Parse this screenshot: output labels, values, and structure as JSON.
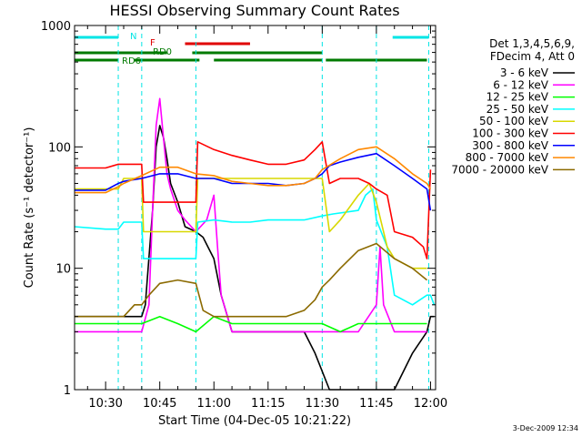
{
  "chart_data": {
    "type": "line",
    "title": "HESSI Observing Summary Count Rates",
    "xlabel": "Start Time (04-Dec-05 10:21:22)",
    "ylabel": "Count Rate (s⁻¹ detector⁻¹)",
    "y_scale": "log",
    "ylim": [
      1,
      1000
    ],
    "xlim_minutes_after_10_00": [
      21.4,
      121.4
    ],
    "x_ticks": [
      {
        "label": "10:30",
        "x": 30
      },
      {
        "label": "10:45",
        "x": 45
      },
      {
        "label": "11:00",
        "x": 60
      },
      {
        "label": "11:15",
        "x": 75
      },
      {
        "label": "11:30",
        "x": 90
      },
      {
        "label": "11:45",
        "x": 105
      },
      {
        "label": "12:00",
        "x": 120
      }
    ],
    "y_ticks": [
      {
        "label": "1",
        "y": 1
      },
      {
        "label": "10",
        "y": 10
      },
      {
        "label": "100",
        "y": 100
      },
      {
        "label": "1000",
        "y": 1000
      }
    ],
    "legend_header": [
      "Det 1,3,4,5,6,9,",
      "FDecim 4, Att 0"
    ],
    "legend_position": "right",
    "date_stamp": "3-Dec-2009 12:34",
    "flags": [
      {
        "name": "N",
        "color": "#00e5e5",
        "segments": [
          [
            21.4,
            33.5
          ],
          [
            109.5,
            119.5
          ]
        ]
      },
      {
        "name": "F",
        "color": "#e00000",
        "segments": [
          [
            52,
            70
          ]
        ]
      },
      {
        "name": "RD0",
        "color": "#007a00",
        "segments": [
          [
            21.4,
            47
          ],
          [
            54,
            90
          ]
        ]
      },
      {
        "name": "RD6",
        "color": "#007a00",
        "segments": [
          [
            21.4,
            33.5
          ],
          [
            38,
            56
          ],
          [
            60,
            90
          ],
          [
            91,
            119
          ]
        ]
      }
    ],
    "series": [
      {
        "name": "3 - 6 keV",
        "color": "#000000",
        "x": [
          21.4,
          30,
          40,
          41,
          43,
          44,
          45,
          46,
          47,
          48,
          50,
          52,
          55,
          57,
          60,
          62,
          65,
          70,
          75,
          80,
          85,
          88,
          92,
          100,
          105,
          110,
          115,
          119,
          120,
          121
        ],
        "y": [
          4,
          4,
          4,
          5,
          30,
          100,
          150,
          120,
          80,
          50,
          35,
          22,
          20,
          18,
          12,
          6,
          3,
          3,
          3,
          3,
          3,
          2,
          1,
          1,
          1,
          1,
          2,
          3,
          4,
          4
        ]
      },
      {
        "name": "6 - 12 keV",
        "color": "#ff00ff",
        "x": [
          21.4,
          40,
          42,
          43,
          44,
          45,
          46,
          47,
          48,
          50,
          52,
          55,
          58,
          60,
          61,
          62,
          65,
          70,
          80,
          90,
          100,
          105,
          106,
          107,
          110,
          115,
          119
        ],
        "y": [
          3,
          3,
          5,
          30,
          150,
          250,
          120,
          60,
          45,
          30,
          25,
          20,
          25,
          40,
          15,
          6,
          3,
          3,
          3,
          3,
          3,
          5,
          15,
          5,
          3,
          3,
          3
        ]
      },
      {
        "name": "12 - 25 keV",
        "color": "#00ff00",
        "x": [
          21.4,
          35,
          40,
          45,
          50,
          55,
          60,
          65,
          70,
          80,
          90,
          95,
          100,
          105,
          110,
          115,
          119
        ],
        "y": [
          3.5,
          3.5,
          3.5,
          4,
          3.5,
          3,
          4,
          3.5,
          3.5,
          3.5,
          3.5,
          3,
          3.5,
          3.5,
          3.5,
          3.5,
          3.5
        ]
      },
      {
        "name": "25 - 50 keV",
        "color": "#00ffff",
        "x": [
          21.4,
          30,
          33.5,
          35,
          40,
          40.5,
          45,
          50,
          55,
          55.5,
          60,
          65,
          70,
          75,
          80,
          85,
          90,
          93,
          100,
          102,
          104,
          105,
          108,
          110,
          115,
          119,
          120,
          121
        ],
        "y": [
          22,
          21,
          21,
          24,
          24,
          12,
          12,
          12,
          12,
          24,
          25,
          24,
          24,
          25,
          25,
          25,
          27,
          28,
          30,
          40,
          45,
          25,
          15,
          6,
          5,
          6,
          6,
          5
        ]
      },
      {
        "name": "50 - 100 keV",
        "color": "#d8d800",
        "x": [
          21.4,
          33.5,
          35,
          40,
          40.5,
          45,
          50,
          55,
          55.5,
          60,
          65,
          70,
          80,
          90,
          92,
          95,
          100,
          103,
          105,
          108,
          110,
          115,
          119
        ],
        "y": [
          45,
          45,
          55,
          55,
          20,
          20,
          20,
          20,
          55,
          55,
          55,
          55,
          55,
          55,
          20,
          25,
          40,
          50,
          35,
          15,
          12,
          10,
          10
        ]
      },
      {
        "name": "100 - 300 keV",
        "color": "#ff0000",
        "x": [
          21.4,
          30,
          33.5,
          35,
          40,
          40.5,
          45,
          50,
          55,
          55.5,
          60,
          65,
          70,
          75,
          80,
          85,
          88,
          90,
          92,
          95,
          100,
          103,
          105,
          108,
          110,
          115,
          118,
          119,
          120
        ],
        "y": [
          67,
          67,
          72,
          72,
          72,
          35,
          35,
          35,
          35,
          110,
          95,
          85,
          78,
          72,
          72,
          78,
          95,
          110,
          50,
          55,
          55,
          50,
          45,
          40,
          20,
          18,
          15,
          12,
          65
        ]
      },
      {
        "name": "300 - 800 keV",
        "color": "#0000ff",
        "x": [
          21.4,
          30,
          33.5,
          35,
          40,
          45,
          50,
          55,
          60,
          65,
          70,
          75,
          80,
          85,
          88,
          90,
          92,
          95,
          100,
          105,
          110,
          115,
          119,
          120
        ],
        "y": [
          44,
          44,
          50,
          52,
          55,
          60,
          60,
          55,
          55,
          50,
          50,
          50,
          48,
          50,
          55,
          60,
          70,
          75,
          82,
          88,
          70,
          55,
          45,
          30
        ]
      },
      {
        "name": "800 - 7000 keV",
        "color": "#ff8800",
        "x": [
          21.4,
          30,
          33.5,
          35,
          40,
          45,
          50,
          55,
          60,
          65,
          70,
          75,
          80,
          85,
          88,
          90,
          95,
          100,
          105,
          110,
          115,
          119,
          120
        ],
        "y": [
          42,
          42,
          47,
          50,
          58,
          68,
          68,
          60,
          58,
          52,
          50,
          48,
          48,
          50,
          55,
          65,
          80,
          95,
          100,
          80,
          60,
          50,
          45
        ]
      },
      {
        "name": "7000 - 20000 keV",
        "color": "#8b6a00",
        "x": [
          21.4,
          35,
          38,
          40,
          42,
          45,
          50,
          55,
          57,
          60,
          65,
          70,
          75,
          80,
          85,
          88,
          90,
          92,
          95,
          100,
          105,
          110,
          115,
          119
        ],
        "y": [
          4,
          4,
          5,
          5,
          6,
          7.5,
          8,
          7.5,
          4.5,
          4,
          4,
          4,
          4,
          4,
          4.5,
          5.5,
          7,
          8,
          10,
          14,
          16,
          12,
          10,
          8
        ]
      }
    ]
  }
}
